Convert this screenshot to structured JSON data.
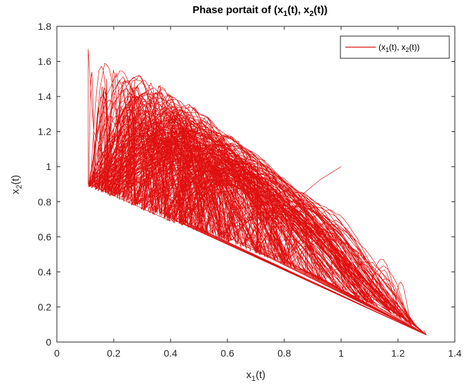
{
  "chart_data": {
    "type": "line",
    "title": {
      "prefix": "Phase portait of (x",
      "sub1": "1",
      "mid": "(t), x",
      "sub2": "2",
      "suffix": "(t))"
    },
    "xlabel": {
      "base": "x",
      "sub": "1",
      "suffix": "(t)"
    },
    "ylabel": {
      "base": "x",
      "sub": "2",
      "suffix": "(t)"
    },
    "xlim": [
      0,
      1.4
    ],
    "ylim": [
      0,
      1.8
    ],
    "xticks": [
      0,
      0.2,
      0.4,
      0.6,
      0.8,
      1,
      1.2,
      1.4
    ],
    "xtick_labels": [
      "0",
      "0.2",
      "0.4",
      "0.6",
      "0.8",
      "1",
      "1.2",
      "1.4"
    ],
    "yticks": [
      0,
      0.2,
      0.4,
      0.6,
      0.8,
      1,
      1.2,
      1.4,
      1.6,
      1.8
    ],
    "ytick_labels": [
      "0",
      "0.2",
      "0.4",
      "0.6",
      "0.8",
      "1",
      "1.2",
      "1.4",
      "1.6",
      "1.8"
    ],
    "grid": false,
    "legend": {
      "placement": "top-right",
      "entry": {
        "prefix": "(x",
        "sub1": "1",
        "mid": "(t), x",
        "sub2": "2",
        "suffix": "(t))"
      }
    },
    "series": [
      {
        "color": "#e01010",
        "start": [
          1.0,
          1.0
        ],
        "transient": [
          [
            1.0,
            1.0
          ],
          [
            0.97,
            0.97
          ],
          [
            0.93,
            0.93
          ],
          [
            0.9,
            0.89
          ],
          [
            0.87,
            0.85
          ],
          [
            0.85,
            0.8
          ],
          [
            0.84,
            0.77
          ]
        ],
        "attractor": {
          "x_range": [
            0.11,
            1.3
          ],
          "upper_envelope": [
            [
              0.11,
              1.67
            ],
            [
              0.2,
              1.58
            ],
            [
              0.4,
              1.43
            ],
            [
              0.6,
              1.2
            ],
            [
              0.8,
              0.95
            ],
            [
              1.0,
              0.72
            ],
            [
              1.2,
              0.4
            ],
            [
              1.3,
              0.04
            ]
          ],
          "lower_envelope": [
            [
              0.11,
              0.9
            ],
            [
              0.4,
              0.7
            ],
            [
              0.6,
              0.58
            ],
            [
              0.8,
              0.45
            ],
            [
              1.0,
              0.3
            ],
            [
              1.2,
              0.15
            ],
            [
              1.3,
              0.04
            ]
          ]
        }
      }
    ],
    "colors": {
      "line": "#e01010",
      "axes": "#262626",
      "text": "#000000"
    }
  }
}
